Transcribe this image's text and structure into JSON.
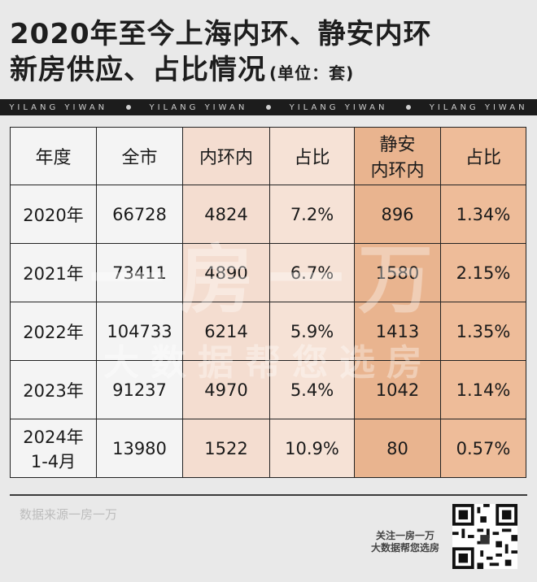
{
  "title": {
    "line1": "2020年至今上海内环、静安内环",
    "line2": "新房供应、占比情况",
    "unit": "(单位：套)"
  },
  "band": {
    "text": "YILANG YIWAN"
  },
  "watermark": {
    "big": "一房一万",
    "small": "大数据帮您选房"
  },
  "table": {
    "headers": [
      "年度",
      "全市",
      "内环内",
      "占比",
      "静安\n内环内",
      "占比"
    ],
    "rows": [
      [
        "2020年",
        "66728",
        "4824",
        "7.2%",
        "896",
        "1.34%"
      ],
      [
        "2021年",
        "73411",
        "4890",
        "6.7%",
        "1580",
        "2.15%"
      ],
      [
        "2022年",
        "104733",
        "6214",
        "5.9%",
        "1413",
        "1.35%"
      ],
      [
        "2023年",
        "91237",
        "4970",
        "5.4%",
        "1042",
        "1.14%"
      ],
      [
        "2024年\n1-4月",
        "13980",
        "1522",
        "10.9%",
        "80",
        "0.57%"
      ]
    ]
  },
  "footer": {
    "source": "数据来源一房一万",
    "promo_line1": "关注一房一万",
    "promo_line2": "大数据帮您选房"
  },
  "colors": {
    "col_inner": "#f4ddd0",
    "col_jingan": "#e9b48f"
  },
  "icons": {
    "qr": "qr-code-icon"
  }
}
